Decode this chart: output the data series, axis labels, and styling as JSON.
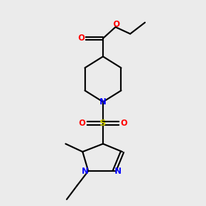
{
  "bg_color": "#ebebeb",
  "bond_color": "#000000",
  "N_color": "#0000ff",
  "O_color": "#ff0000",
  "S_color": "#cccc00",
  "line_width": 1.6,
  "font_size": 8.5,
  "xlim": [
    2.5,
    7.5
  ],
  "ylim": [
    0.5,
    9.5
  ]
}
